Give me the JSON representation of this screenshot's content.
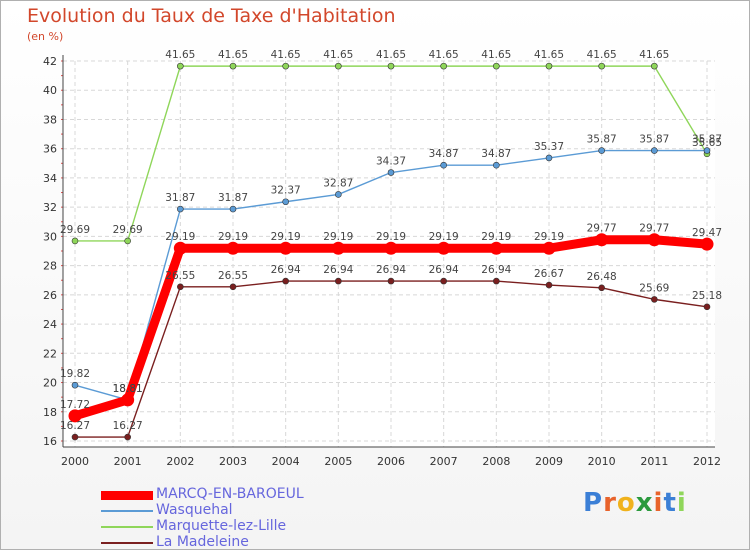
{
  "chart_data": {
    "type": "line",
    "title": "Evolution du Taux de Taxe d'Habitation",
    "subtitle": "(en %)",
    "x": [
      "2000",
      "2001",
      "2002",
      "2003",
      "2004",
      "2005",
      "2006",
      "2007",
      "2008",
      "2009",
      "2010",
      "2011",
      "2012"
    ],
    "ylim": [
      16,
      42
    ],
    "yticks": [
      16,
      18,
      20,
      22,
      24,
      26,
      28,
      30,
      32,
      34,
      36,
      38,
      40,
      42
    ],
    "grid": true,
    "legend_position": "bottom-left",
    "series": [
      {
        "name": "MARCQ-EN-BAROEUL",
        "color": "#ff0000",
        "values": [
          17.72,
          18.81,
          29.19,
          29.19,
          29.19,
          29.19,
          29.19,
          29.19,
          29.19,
          29.19,
          29.77,
          29.77,
          29.47
        ]
      },
      {
        "name": "Wasquehal",
        "color": "#5b9bd5",
        "values": [
          19.82,
          18.81,
          31.87,
          31.87,
          32.37,
          32.87,
          34.37,
          34.87,
          34.87,
          35.37,
          35.87,
          35.87,
          35.87
        ]
      },
      {
        "name": "Marquette-lez-Lille",
        "color": "#8fd65a",
        "values": [
          29.69,
          29.69,
          41.65,
          41.65,
          41.65,
          41.65,
          41.65,
          41.65,
          41.65,
          41.65,
          41.65,
          41.65,
          35.65
        ]
      },
      {
        "name": "La Madeleine",
        "color": "#7a1f1f",
        "values": [
          16.27,
          16.27,
          26.55,
          26.55,
          26.94,
          26.94,
          26.94,
          26.94,
          26.94,
          26.67,
          26.48,
          25.69,
          25.18
        ]
      }
    ]
  },
  "logo": {
    "letters": [
      "P",
      "r",
      "o",
      "x",
      "i",
      "t",
      "i"
    ],
    "colors": [
      "#3b7fd6",
      "#e8632b",
      "#f0b21c",
      "#2b9a3e",
      "#e8632b",
      "#3b7fd6",
      "#8fd65a"
    ]
  }
}
